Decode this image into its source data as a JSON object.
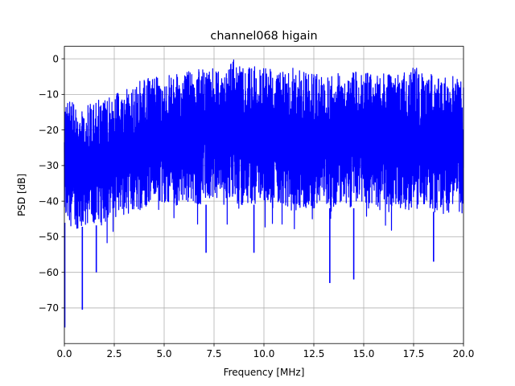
{
  "chart_data": {
    "type": "line",
    "title": "channel068 higain",
    "xlabel": "Frequency [MHz]",
    "ylabel": "PSD [dB]",
    "xlim": [
      0,
      20
    ],
    "ylim": [
      -80,
      3.5
    ],
    "xticks": [
      0.0,
      2.5,
      5.0,
      7.5,
      10.0,
      12.5,
      15.0,
      17.5,
      20.0
    ],
    "xtick_labels": [
      "0.0",
      "2.5",
      "5.0",
      "7.5",
      "10.0",
      "12.5",
      "15.0",
      "17.5",
      "20.0"
    ],
    "yticks": [
      0,
      -10,
      -20,
      -30,
      -40,
      -50,
      -60,
      -70
    ],
    "ytick_labels": [
      "0",
      "−10",
      "−20",
      "−30",
      "−40",
      "−50",
      "−60",
      "−70"
    ],
    "grid": true,
    "series": [
      {
        "color": "#0000ff",
        "envelope_upper": {
          "x": [
            0.0,
            0.1,
            0.5,
            1.0,
            1.5,
            2.0,
            2.5,
            3.0,
            3.5,
            4.0,
            4.5,
            5.0,
            5.5,
            6.0,
            6.5,
            7.0,
            7.5,
            8.0,
            8.5,
            9.0,
            9.5,
            10.0,
            10.5,
            11.0,
            11.5,
            12.0,
            12.5,
            13.0,
            13.5,
            14.0,
            14.5,
            15.0,
            15.5,
            16.0,
            16.5,
            17.0,
            17.5,
            18.0,
            18.5,
            19.0,
            19.5,
            20.0
          ],
          "y": [
            -14,
            -9,
            -13,
            -13,
            -12,
            -11,
            -10,
            -9,
            -7,
            -5.5,
            -5,
            -4.5,
            -4,
            -3.5,
            -3,
            -2.5,
            -2.5,
            -2.5,
            0,
            -2.5,
            -2,
            -2.5,
            -2.5,
            -2.5,
            -2.5,
            -3,
            -3,
            -3,
            -3.5,
            -3.5,
            -3.5,
            -4,
            -4,
            -4,
            -4,
            -4,
            -2,
            -4,
            -4.5,
            -5,
            -4.5,
            -5
          ]
        },
        "envelope_lower": {
          "x": [
            0.0,
            0.5,
            1.0,
            1.5,
            2.0,
            2.5,
            3.0,
            3.5,
            4.0,
            4.5,
            5.0,
            5.5,
            6.0,
            6.5,
            7.0,
            7.5,
            8.0,
            8.5,
            9.0,
            9.5,
            10.0,
            10.5,
            11.0,
            11.5,
            12.0,
            12.5,
            13.0,
            13.5,
            14.0,
            14.5,
            15.0,
            15.5,
            16.0,
            16.5,
            17.0,
            17.5,
            18.0,
            18.5,
            19.0,
            19.5,
            20.0
          ],
          "y": [
            -46,
            -48,
            -47,
            -47,
            -46,
            -45,
            -44,
            -43,
            -42,
            -41,
            -41,
            -41,
            -41,
            -41,
            -41,
            -41,
            -41,
            -41,
            -41,
            -41,
            -41,
            -41,
            -41,
            -42,
            -42,
            -42,
            -42,
            -42,
            -42,
            -42,
            -42,
            -42,
            -43,
            -43,
            -43,
            -43,
            -43,
            -43,
            -44,
            -44,
            -44
          ]
        },
        "notable_dips": [
          {
            "x": 0.02,
            "y": -75.5
          },
          {
            "x": 0.9,
            "y": -70.5
          },
          {
            "x": 1.6,
            "y": -60
          },
          {
            "x": 7.1,
            "y": -54.5
          },
          {
            "x": 9.5,
            "y": -54.5
          },
          {
            "x": 13.3,
            "y": -63
          },
          {
            "x": 14.5,
            "y": -62
          },
          {
            "x": 18.5,
            "y": -57
          }
        ]
      }
    ]
  }
}
